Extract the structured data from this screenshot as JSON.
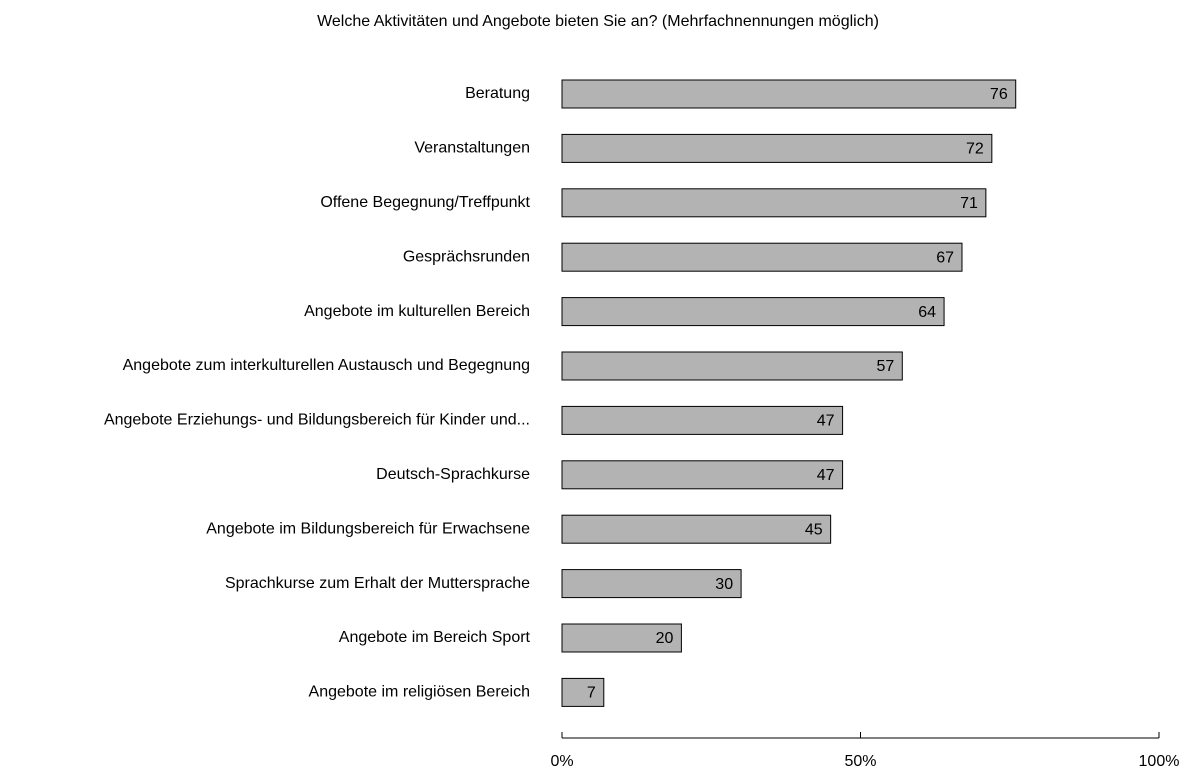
{
  "chart_data": {
    "type": "hbar",
    "title": "Welche Aktivitäten und Angebote bieten Sie an? (Mehrfachnennungen möglich)",
    "categories": [
      "Beratung",
      "Veranstaltungen",
      "Offene Begegnung/Treffpunkt",
      "Gesprächsrunden",
      "Angebote im kulturellen Bereich",
      "Angebote zum interkulturellen Austausch und Begegnung",
      "Angebote Erziehungs- und Bildungsbereich für Kinder und...",
      "Deutsch-Sprachkurse",
      "Angebote im Bildungsbereich für Erwachsene",
      "Sprachkurse zum Erhalt der Muttersprache",
      "Angebote im Bereich Sport",
      "Angebote im religiösen Bereich"
    ],
    "values": [
      76,
      72,
      71,
      67,
      64,
      57,
      47,
      47,
      45,
      30,
      20,
      7
    ],
    "color": "#b3b3b3",
    "xlim": [
      0,
      100
    ],
    "xticks": [
      {
        "value": 0,
        "label": "0%"
      },
      {
        "value": 50,
        "label": "50%"
      },
      {
        "value": 100,
        "label": "100%"
      }
    ],
    "grid": false
  }
}
